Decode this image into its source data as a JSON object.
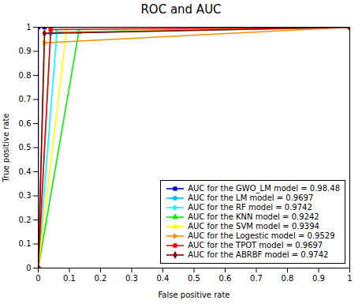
{
  "chart_data": {
    "type": "line",
    "title": "ROC and AUC",
    "xlabel": "False positive rate",
    "ylabel": "True positive rate",
    "xlim": [
      0,
      1
    ],
    "ylim": [
      0,
      1
    ],
    "xticks": [
      0,
      0.1,
      0.2,
      0.3,
      0.4,
      0.5,
      0.6,
      0.7,
      0.8,
      0.9,
      1
    ],
    "yticks": [
      0,
      0.1,
      0.2,
      0.3,
      0.4,
      0.5,
      0.6,
      0.7,
      0.8,
      0.9,
      1
    ],
    "grid": false,
    "legend": "lower right",
    "series": [
      {
        "name": "AUC for the GWO_LM model = 0.98.48",
        "color": "#0000CD",
        "marker": "square",
        "x": [
          0.0,
          0.0,
          0.02,
          1.0
        ],
        "values": [
          0.0,
          1.0,
          1.0,
          1.0
        ]
      },
      {
        "name": "AUC for the LM model = 0.9697",
        "color": "#00BFFF",
        "marker": "circle",
        "x": [
          0.0,
          0.04,
          1.0
        ],
        "values": [
          0.0,
          0.975,
          1.0
        ]
      },
      {
        "name": "AUC for the RF model = 0.9742",
        "color": "#00FFFF",
        "marker": "triangle-right",
        "x": [
          0.0,
          0.06,
          1.0
        ],
        "values": [
          0.0,
          0.98,
          1.0
        ]
      },
      {
        "name": "AUC for the KNN model = 0.9242",
        "color": "#00EE00",
        "marker": "triangle-up",
        "x": [
          0.0,
          0.13,
          1.0
        ],
        "values": [
          0.0,
          0.98,
          1.0
        ]
      },
      {
        "name": "AUC for the SVM model = 0.9394",
        "color": "#FFFF00",
        "marker": "triangle-up",
        "x": [
          0.0,
          0.09,
          1.0
        ],
        "values": [
          0.0,
          0.98,
          1.0
        ]
      },
      {
        "name": "AUC for the Logestic model = 0.9529",
        "color": "#FF8C00",
        "marker": "triangle-right",
        "x": [
          0.0,
          0.02,
          1.0
        ],
        "values": [
          0.0,
          0.935,
          1.0
        ]
      },
      {
        "name": "AUC for the TPOT model = 0.9697",
        "color": "#FF0000",
        "marker": "circle",
        "x": [
          0.0,
          0.04,
          1.0
        ],
        "values": [
          0.0,
          0.99,
          1.0
        ]
      },
      {
        "name": "AUC for the ABRBF model = 0.9742",
        "color": "#8B0000",
        "marker": "diamond",
        "x": [
          0.0,
          0.02,
          1.0
        ],
        "values": [
          0.0,
          0.975,
          1.0
        ]
      }
    ]
  }
}
